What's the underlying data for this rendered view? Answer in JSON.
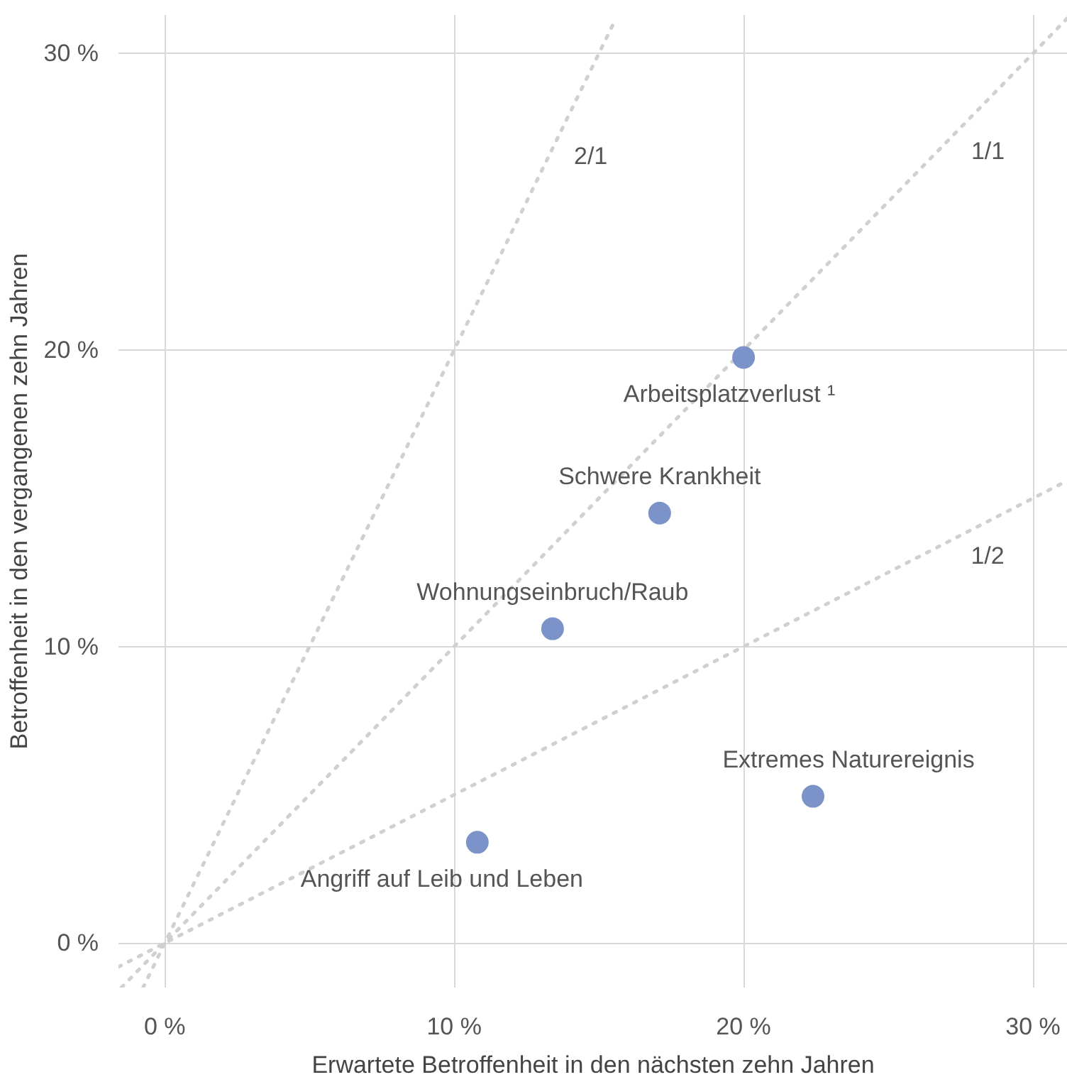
{
  "chart_data": {
    "type": "scatter",
    "xlabel": "Erwartete Betroffenheit in den nächsten zehn Jahren",
    "ylabel": "Betroffenheit in den vergangenen zehn Jahren",
    "xlim": [
      -1.6,
      31.2
    ],
    "ylim": [
      -1.5,
      31.3
    ],
    "xticks": [
      {
        "value": 0,
        "label": "0 %"
      },
      {
        "value": 10,
        "label": "10 %"
      },
      {
        "value": 20,
        "label": "20 %"
      },
      {
        "value": 30,
        "label": "30 %"
      }
    ],
    "yticks": [
      {
        "value": 0,
        "label": "0 %"
      },
      {
        "value": 10,
        "label": "10 %"
      },
      {
        "value": 20,
        "label": "20 %"
      },
      {
        "value": 30,
        "label": "30 %"
      }
    ],
    "grid": true,
    "series": [
      {
        "type": "line",
        "name": "2/1",
        "line_style": "dotted",
        "color": "#d0d0d0",
        "x": [
          -0.75,
          15.5
        ],
        "values": [
          -1.5,
          31.0
        ]
      },
      {
        "type": "line",
        "name": "1/1",
        "line_style": "dotted",
        "color": "#d0d0d0",
        "x": [
          -1.5,
          31.2
        ],
        "values": [
          -1.5,
          31.2
        ]
      },
      {
        "type": "line",
        "name": "1/2",
        "line_style": "dotted",
        "color": "#d0d0d0",
        "x": [
          -1.6,
          31.2
        ],
        "values": [
          -0.8,
          15.6
        ]
      },
      {
        "marker": "circle",
        "color": "#7b93c9",
        "x": [
          20.0,
          17.1,
          13.4,
          22.4,
          10.8
        ],
        "values": [
          19.75,
          14.5,
          10.6,
          4.95,
          3.4
        ]
      }
    ],
    "annotations": [
      {
        "text": "Arbeitsplatzverlust ¹",
        "x": 20.0,
        "y": 19.75
      },
      {
        "text": "Schwere Krankheit",
        "x": 17.1,
        "y": 14.5
      },
      {
        "text": "Wohnungseinbruch/Raub",
        "x": 13.4,
        "y": 10.6
      },
      {
        "text": "Extremes Naturereignis",
        "x": 22.4,
        "y": 4.95
      },
      {
        "text": "Angriff auf Leib und Leben",
        "x": 10.8,
        "y": 3.4
      }
    ]
  }
}
